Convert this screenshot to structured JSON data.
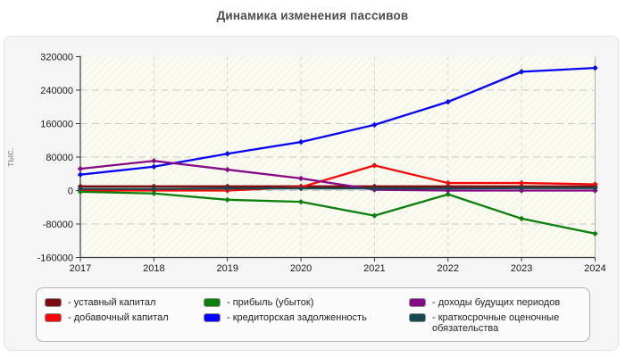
{
  "title": "Динамика изменения пассивов",
  "chart_data": {
    "type": "line",
    "x": [
      2017,
      2018,
      2019,
      2020,
      2021,
      2022,
      2023,
      2024
    ],
    "x_tick_labels": [
      "2017",
      "2018",
      "2019",
      "2020",
      "2021",
      "2022",
      "2023",
      "2024"
    ],
    "y_ticks": [
      320000,
      240000,
      160000,
      80000,
      0,
      -80000,
      -160000
    ],
    "y_tick_labels": [
      "320000",
      "240000",
      "160000",
      "80000",
      "0",
      "-80000",
      "-160000"
    ],
    "ylim": [
      -160000,
      320000
    ],
    "ylabel": "тыс.",
    "xlabel": "",
    "grid": true,
    "legend_position": "bottom",
    "plot_background": "#f7f7ea",
    "series": [
      {
        "key": "ustavny-kapital",
        "name": "уставный капитал",
        "legend_label": "- уставный капитал",
        "color": "#7d0c10",
        "values": [
          10000,
          10000,
          10000,
          10000,
          10000,
          10000,
          10000,
          10000
        ]
      },
      {
        "key": "dobavochny-kapital",
        "name": "добавочный капитал",
        "legend_label": "- добавочный капитал",
        "color": "#f60809",
        "values": [
          0,
          0,
          0,
          8000,
          60000,
          18000,
          18000,
          15000
        ]
      },
      {
        "key": "pribyl-ubytok",
        "name": "прибыль (убыток)",
        "legend_label": "- прибыль (убыток)",
        "color": "#0c800c",
        "values": [
          -3000,
          -7000,
          -22000,
          -27000,
          -60000,
          -9000,
          -67000,
          -103000
        ]
      },
      {
        "key": "kreditorskaya-zadolzhennost",
        "name": "кредиторская задолженность",
        "legend_label": "- кредиторская задолженность",
        "color": "#0504f8",
        "values": [
          38000,
          57000,
          88000,
          116000,
          157000,
          212000,
          284000,
          293000
        ]
      },
      {
        "key": "dokhody-budushchikh-periodov",
        "name": "доходы будущих периодов",
        "legend_label": "- доходы будущих периодов",
        "color": "#850b85",
        "values": [
          52000,
          71000,
          50000,
          29000,
          2000,
          0,
          0,
          0
        ]
      },
      {
        "key": "kratkosrochnye-otsenochnye-obyazatelstva",
        "name": "краткосрочные оценочные обязательства",
        "legend_label": "- краткосрочные оценочные обязательства",
        "color": "#174a50",
        "values": [
          4000,
          4000,
          5000,
          5000,
          5000,
          5000,
          6000,
          6000
        ]
      }
    ]
  }
}
